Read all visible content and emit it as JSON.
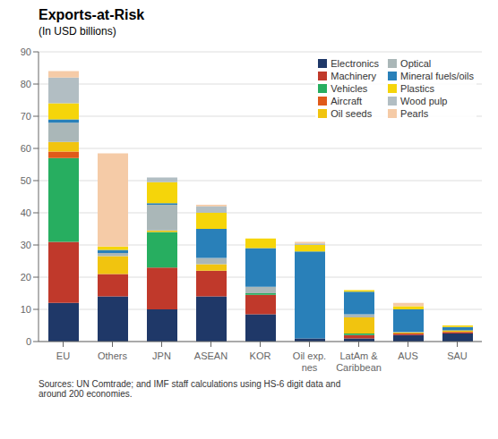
{
  "chart_data": {
    "type": "bar",
    "title": "Exports-at-Risk",
    "subtitle": "(In USD billions)",
    "annotations": [
      "Sources: UN Comtrade; and IMF staff calculations using HS-6 digit data and\naround 200 economies."
    ],
    "categories": [
      "EU",
      "Others",
      "JPN",
      "ASEAN",
      "KOR",
      "Oil exp.\nnes",
      "LatAm &\nCaribbean",
      "AUS",
      "SAU"
    ],
    "ylim": [
      0,
      90
    ],
    "yticks": [
      0,
      10,
      20,
      30,
      40,
      50,
      60,
      70,
      80,
      90
    ],
    "stacked": true,
    "grid": true,
    "legend": "upper right",
    "series": [
      {
        "name": "Electronics",
        "color": "#1f3868",
        "values": [
          12,
          14,
          10,
          14,
          8.5,
          1,
          1,
          2,
          2.5
        ]
      },
      {
        "name": "Machinery",
        "color": "#c0392b",
        "values": [
          19,
          7,
          13,
          8,
          6,
          0,
          1,
          0.5,
          0.5
        ]
      },
      {
        "name": "Vehicles",
        "color": "#27ae60",
        "values": [
          26,
          0,
          11,
          0,
          0.5,
          0,
          0.5,
          0,
          0
        ]
      },
      {
        "name": "Aircraft",
        "color": "#e05a1a",
        "values": [
          2,
          0,
          0,
          0,
          0,
          0,
          0,
          0,
          0
        ]
      },
      {
        "name": "Oil seeds",
        "color": "#f1c40f",
        "values": [
          3,
          5.5,
          0.5,
          2,
          0,
          0,
          5,
          0.3,
          0.5
        ]
      },
      {
        "name": "Optical",
        "color": "#aab7b8",
        "values": [
          6,
          1,
          8,
          2,
          2,
          0,
          1,
          0.2,
          0
        ]
      },
      {
        "name": "Mineral fuels/oils",
        "color": "#2980b9",
        "values": [
          1,
          1,
          0.5,
          9,
          12,
          27,
          7,
          7,
          1
        ]
      },
      {
        "name": "Plastics",
        "color": "#f5d50a",
        "values": [
          5,
          1,
          6.5,
          5,
          3,
          2,
          0.5,
          1,
          0.5
        ]
      },
      {
        "name": "Wood pulp",
        "color": "#b2bec3",
        "values": [
          8,
          0,
          1.5,
          2,
          0,
          0.5,
          0,
          0,
          0
        ]
      },
      {
        "name": "Pearls",
        "color": "#f5cba7",
        "values": [
          2,
          29,
          0,
          0.5,
          0,
          0.5,
          0,
          1,
          0
        ]
      }
    ]
  }
}
